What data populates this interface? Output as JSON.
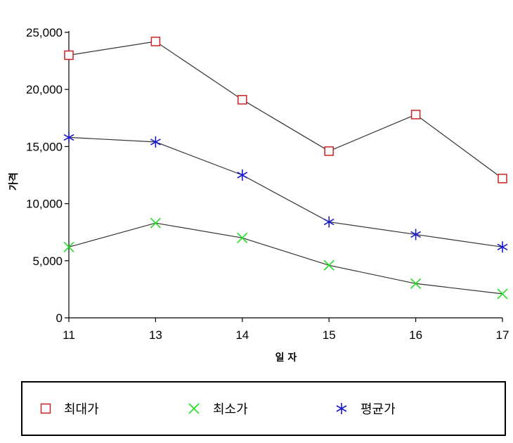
{
  "chart_data": {
    "type": "line",
    "title": "",
    "xlabel": "일 자",
    "ylabel": "가격",
    "categories": [
      "11",
      "13",
      "14",
      "15",
      "16",
      "17"
    ],
    "ylim": [
      0,
      25000
    ],
    "yticks": [
      "0",
      "5,000",
      "10,000",
      "15,000",
      "20,000",
      "25,000"
    ],
    "ytick_values": [
      0,
      5000,
      10000,
      15000,
      20000,
      25000
    ],
    "grid": false,
    "legend_position": "bottom",
    "series": [
      {
        "name": "최대가",
        "values": [
          23000,
          24200,
          19100,
          14600,
          17800,
          12200
        ],
        "color": "#cc2222",
        "marker": "square"
      },
      {
        "name": "최소가",
        "values": [
          6200,
          8300,
          7000,
          4600,
          3000,
          2100
        ],
        "color": "#22dd22",
        "marker": "x"
      },
      {
        "name": "평균가",
        "values": [
          15800,
          15400,
          12500,
          8400,
          7300,
          6200
        ],
        "color": "#1a1acc",
        "marker": "asterisk"
      }
    ]
  }
}
